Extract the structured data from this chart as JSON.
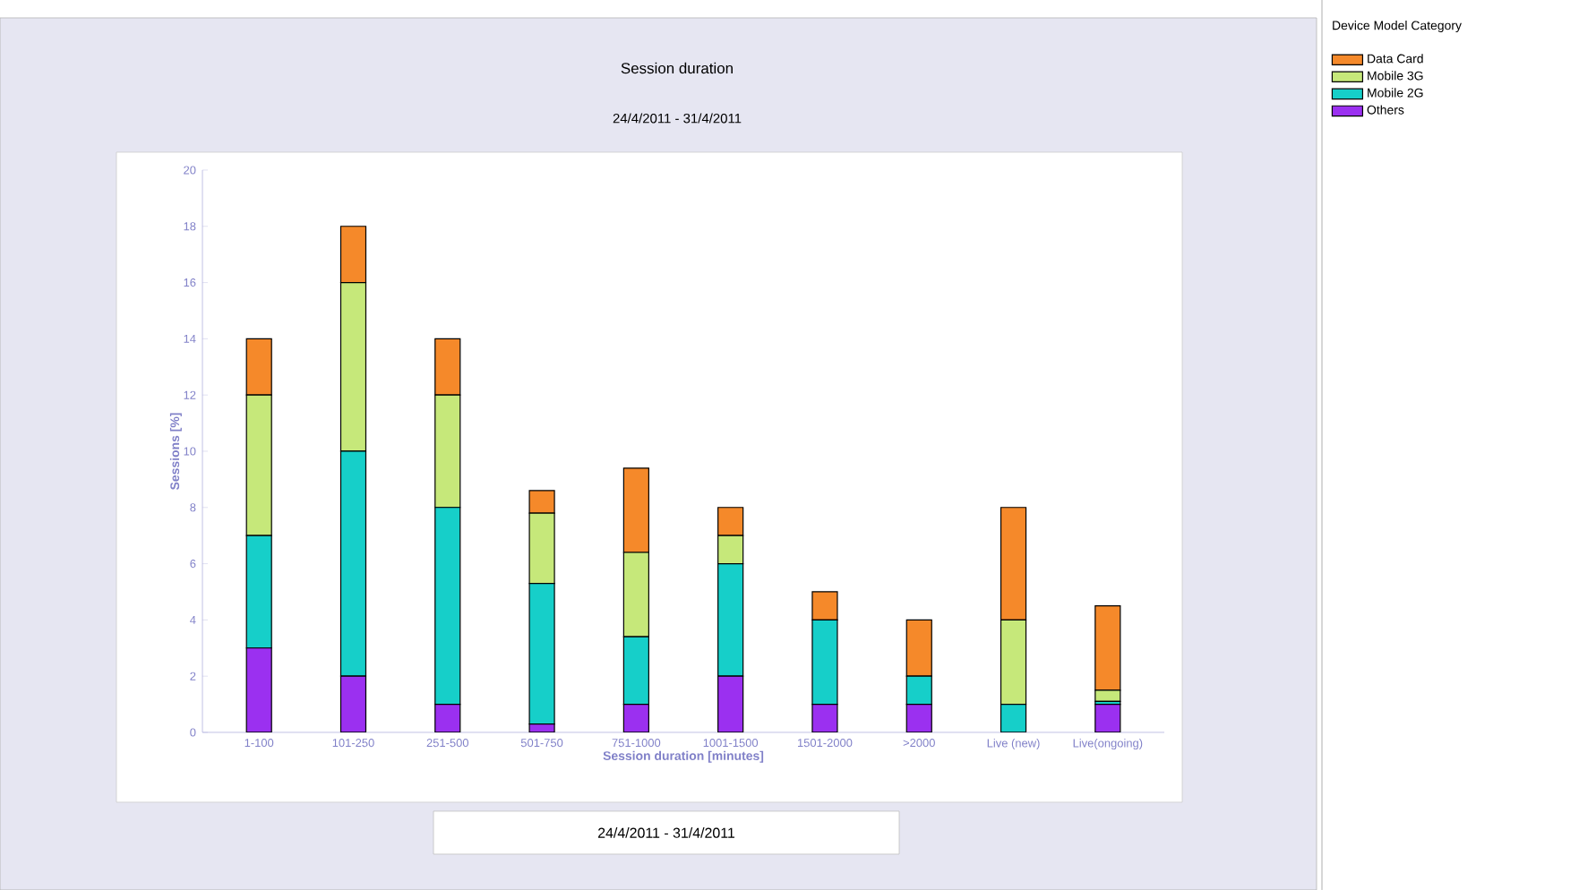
{
  "chart_data": {
    "type": "bar",
    "stacked": true,
    "title": "Session duration",
    "subtitle": "24/4/2011 - 31/4/2011",
    "xlabel": "Session duration [minutes]",
    "ylabel": "Sessions [%]",
    "legend_title": "Device Model Category",
    "categories": [
      "1-100",
      "101-250",
      "251-500",
      "501-750",
      "751-1000",
      "1001-1500",
      "1501-2000",
      ">2000",
      "Live (new)",
      "Live(ongoing)"
    ],
    "series": [
      {
        "name": "Others",
        "color": "#9b30f0",
        "values": [
          3,
          2,
          1,
          0.3,
          1,
          2,
          1,
          1,
          0,
          1
        ]
      },
      {
        "name": "Mobile 2G",
        "color": "#16cfc9",
        "values": [
          4,
          8,
          7,
          5.0,
          2.4,
          4,
          3,
          1,
          1,
          0.1
        ]
      },
      {
        "name": "Mobile 3G",
        "color": "#c6e87a",
        "values": [
          5,
          6,
          4,
          2.5,
          3.0,
          1,
          0,
          0,
          3,
          0.4
        ]
      },
      {
        "name": "Data Card",
        "color": "#f5892a",
        "values": [
          2,
          2,
          2,
          0.8,
          3.0,
          1,
          1,
          2,
          4,
          3
        ]
      }
    ],
    "ylim": [
      0,
      20
    ],
    "yticks": [
      0,
      2,
      4,
      6,
      8,
      10,
      12,
      14,
      16,
      18,
      20
    ],
    "legend": "top right",
    "grid": false,
    "annotations": [
      "24/4/2011 - 31/4/2011"
    ]
  }
}
